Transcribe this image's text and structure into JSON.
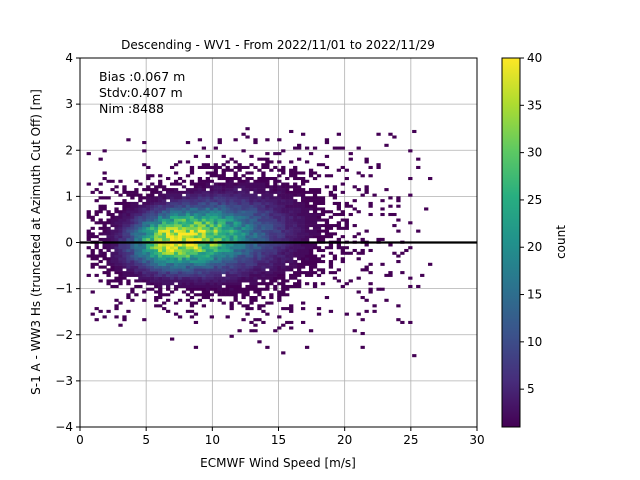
{
  "chart_data": {
    "type": "heatmap",
    "title": "Descending - WV1 - From 2022/11/01 to 2022/11/29",
    "xlabel": "ECMWF Wind Speed [m/s]",
    "ylabel": "S-1 A - WW3 Hs (truncated at Azimuth Cut Off) [m]",
    "xlim": [
      0,
      30
    ],
    "ylim": [
      -4,
      4
    ],
    "xticks": [
      "0",
      "5",
      "10",
      "15",
      "20",
      "25",
      "30"
    ],
    "yticks": [
      "−4",
      "−3",
      "−2",
      "−1",
      "0",
      "1",
      "2",
      "3",
      "4"
    ],
    "grid": true,
    "stats": [
      "Bias :0.067 m",
      "Stdv:0.407 m",
      "Nim :8488"
    ],
    "reference_line_y": 0,
    "colorbar": {
      "label": "count",
      "min": 1,
      "max": 40,
      "ticks": [
        "5",
        "10",
        "15",
        "20",
        "25",
        "30",
        "35",
        "40"
      ],
      "colormap": "viridis"
    },
    "density_model": {
      "note": "Bivariate density of counts: peak ~40 near wind 7 m/s, Hs diff 0.05 m",
      "peak_count": 40,
      "center_x": 7.0,
      "center_y": 0.05,
      "spread_x": 2.6,
      "spread_y": 0.38,
      "x_range": [
        0.5,
        26.5
      ],
      "y_range": [
        -2.6,
        2.5
      ]
    }
  }
}
